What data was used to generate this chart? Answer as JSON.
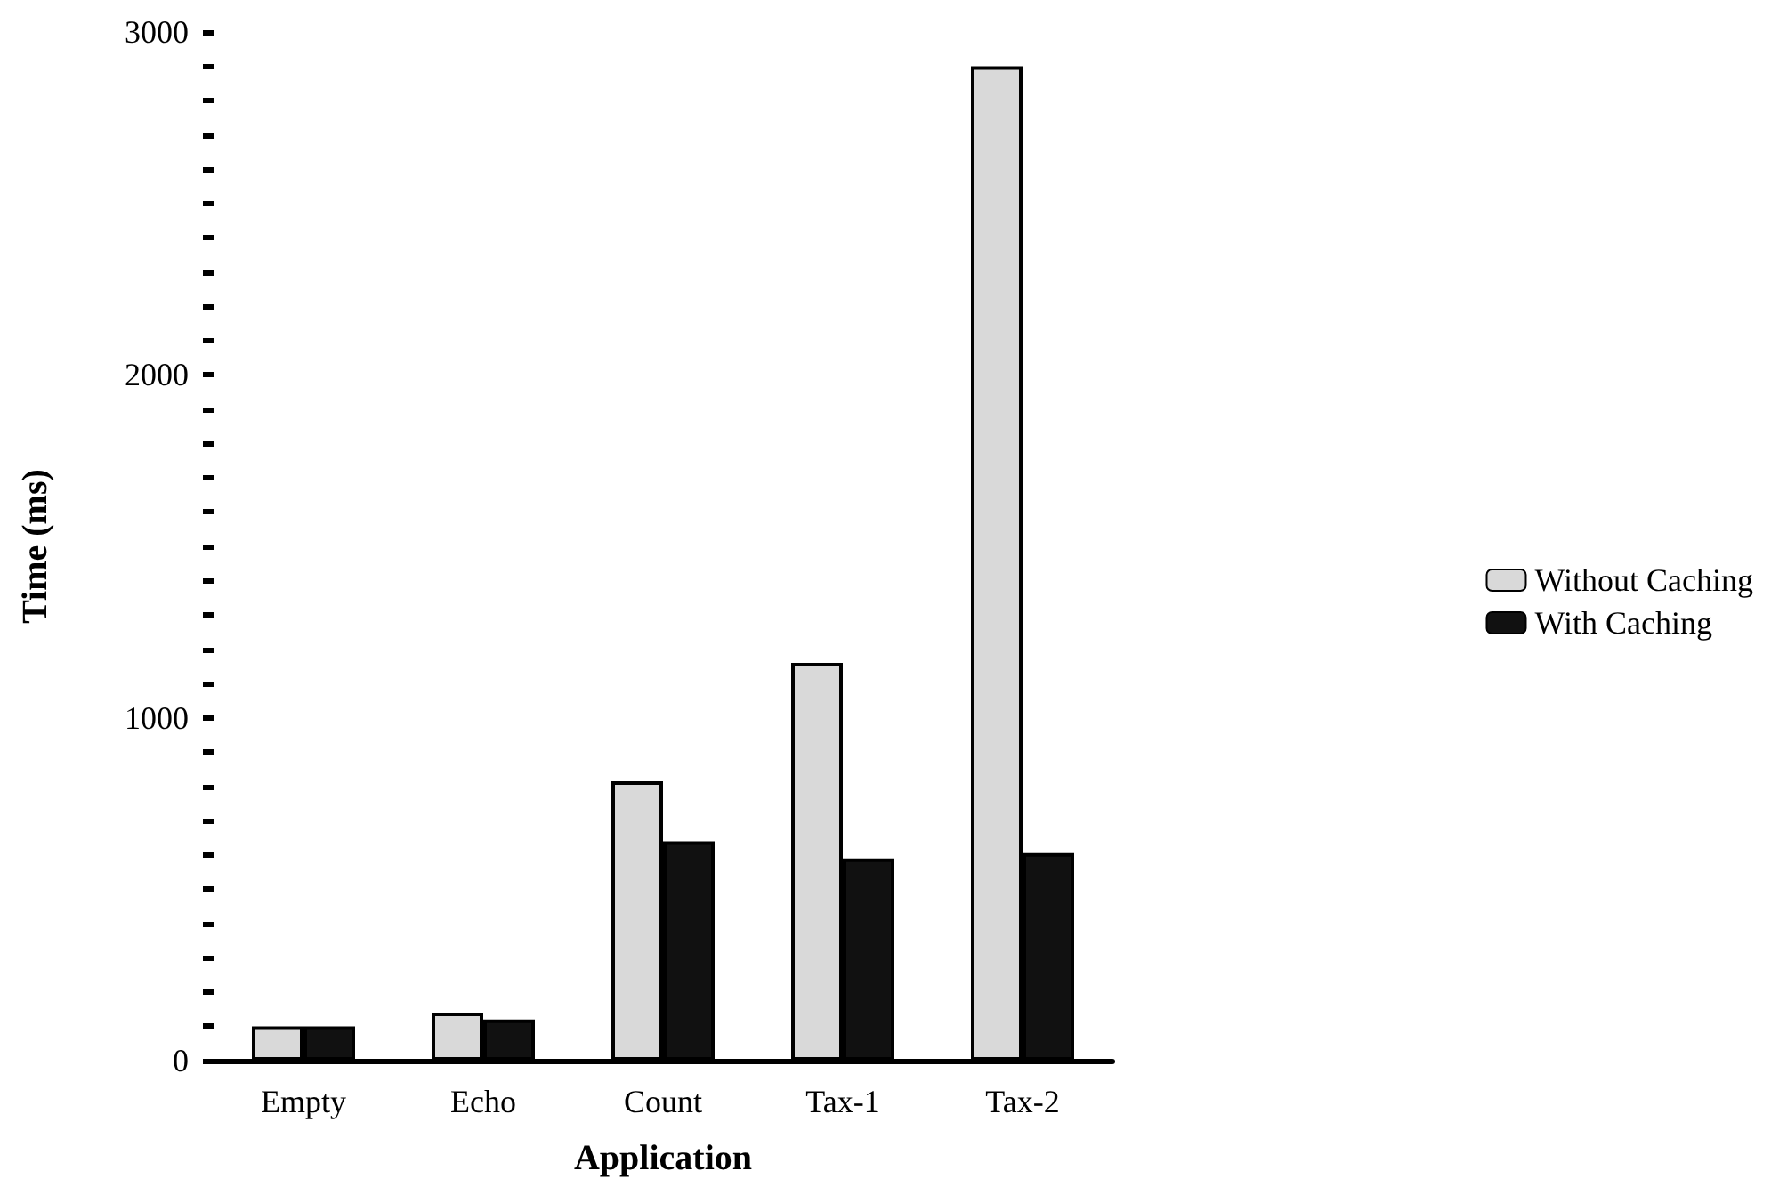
{
  "chart_data": {
    "type": "bar",
    "xlabel": "Application",
    "ylabel": "Time (ms)",
    "categories": [
      "Empty",
      "Echo",
      "Count",
      "Tax-1",
      "Tax-2"
    ],
    "series": [
      {
        "name": "Without Caching",
        "color": "#d9d9d9",
        "values": [
          100,
          140,
          815,
          1160,
          2900
        ]
      },
      {
        "name": "With Caching",
        "color": "#111111",
        "values": [
          100,
          120,
          640,
          590,
          605
        ]
      }
    ],
    "ylim": [
      0,
      3000
    ],
    "yticks": [
      0,
      {
        "value": 100,
        "label": null
      },
      {
        "value": 200,
        "label": null
      },
      {
        "value": 300,
        "label": null
      },
      {
        "value": 400,
        "label": null
      },
      {
        "value": 500,
        "label": null
      },
      {
        "value": 600,
        "label": null
      },
      {
        "value": 700,
        "label": null
      },
      {
        "value": 800,
        "label": null
      },
      {
        "value": 900,
        "label": null
      },
      1000,
      {
        "value": 1100,
        "label": null
      },
      {
        "value": 1200,
        "label": null
      },
      {
        "value": 1300,
        "label": null
      },
      {
        "value": 1400,
        "label": null
      },
      {
        "value": 1500,
        "label": null
      },
      {
        "value": 1600,
        "label": null
      },
      {
        "value": 1700,
        "label": null
      },
      {
        "value": 1800,
        "label": null
      },
      {
        "value": 1900,
        "label": null
      },
      2000,
      {
        "value": 2100,
        "label": null
      },
      {
        "value": 2200,
        "label": null
      },
      {
        "value": 2300,
        "label": null
      },
      {
        "value": 2400,
        "label": null
      },
      {
        "value": 2500,
        "label": null
      },
      {
        "value": 2600,
        "label": null
      },
      {
        "value": 2700,
        "label": null
      },
      {
        "value": 2800,
        "label": null
      },
      {
        "value": 2900,
        "label": null
      },
      3000
    ],
    "grid": false,
    "legend": "right"
  }
}
